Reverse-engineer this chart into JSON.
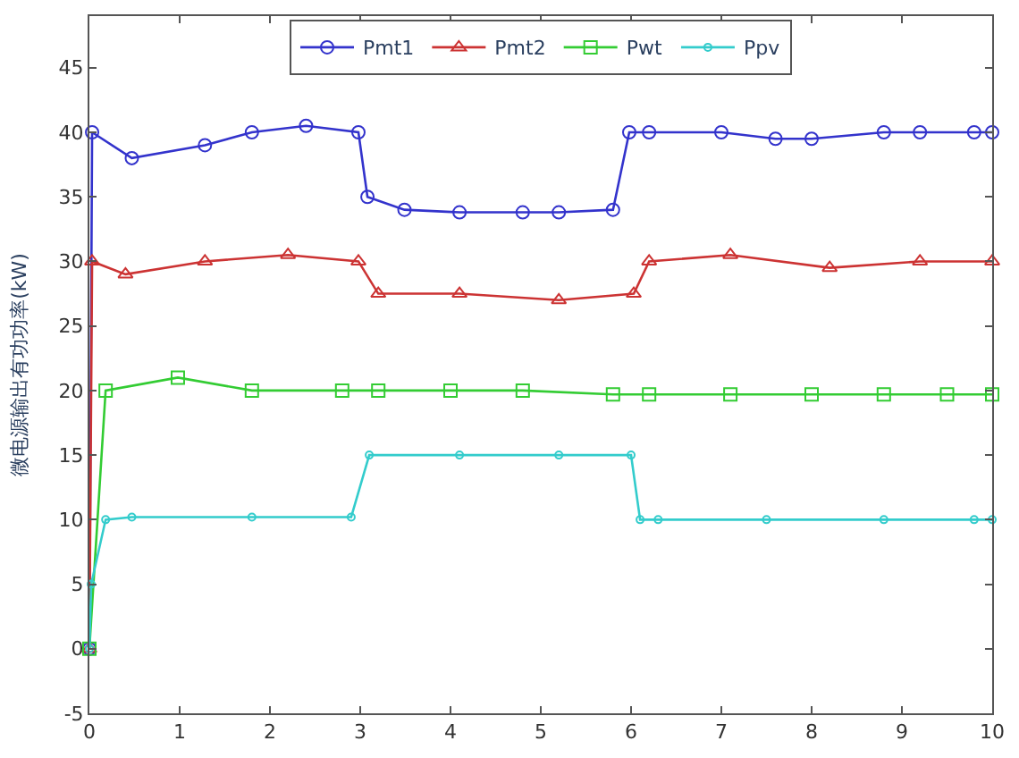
{
  "chart_data": {
    "type": "line",
    "ylabel": "微电源输出有功功率(kW)",
    "xlim": [
      0,
      10
    ],
    "ylim": [
      -5,
      49
    ],
    "xticks": [
      0,
      1,
      2,
      3,
      4,
      5,
      6,
      7,
      8,
      9,
      10
    ],
    "yticks": [
      -5,
      0,
      5,
      10,
      15,
      20,
      25,
      30,
      35,
      40,
      45
    ],
    "legend": "top",
    "line_style": "solid",
    "series": [
      {
        "name": "Pmt1",
        "color": "#3333cc",
        "marker": "circle",
        "x": [
          0,
          0.03,
          0.47,
          1.28,
          1.8,
          2.4,
          2.98,
          3.08,
          3.49,
          4.1,
          4.8,
          5.2,
          5.8,
          5.98,
          6.2,
          7.0,
          7.6,
          8.0,
          8.8,
          9.2,
          9.8,
          10
        ],
        "values": [
          0,
          40,
          38,
          39,
          40,
          40.5,
          40,
          35,
          34,
          33.8,
          33.8,
          33.8,
          34,
          40,
          40,
          40,
          39.5,
          39.5,
          40,
          40,
          40,
          40
        ]
      },
      {
        "name": "Pmt2",
        "color": "#cc3333",
        "marker": "triangle",
        "x": [
          0,
          0.03,
          0.4,
          1.28,
          2.2,
          2.98,
          3.2,
          4.1,
          5.2,
          6.03,
          6.2,
          7.1,
          8.2,
          9.2,
          10
        ],
        "values": [
          0,
          30,
          29,
          30,
          30.5,
          30,
          27.5,
          27.5,
          27,
          27.5,
          30,
          30.5,
          29.5,
          30,
          30
        ]
      },
      {
        "name": "Pwt",
        "color": "#33cc33",
        "marker": "square",
        "x": [
          0,
          0.18,
          0.98,
          1.8,
          2.8,
          3.2,
          4.0,
          4.8,
          5.8,
          6.2,
          7.1,
          8.0,
          8.8,
          9.5,
          10
        ],
        "values": [
          0,
          20,
          21,
          20,
          20,
          20,
          20,
          20,
          19.7,
          19.7,
          19.7,
          19.7,
          19.7,
          19.7,
          19.7
        ]
      },
      {
        "name": "Ppv",
        "color": "#33cccc",
        "marker": "circle",
        "x": [
          0,
          0.02,
          0.18,
          0.47,
          1.8,
          2.9,
          3.1,
          4.1,
          5.2,
          6.0,
          6.1,
          6.3,
          7.5,
          8.8,
          9.8,
          10
        ],
        "values": [
          0,
          5,
          10,
          10.2,
          10.2,
          10.2,
          15,
          15,
          15,
          15,
          10,
          10,
          10,
          10,
          10,
          10
        ]
      }
    ]
  }
}
